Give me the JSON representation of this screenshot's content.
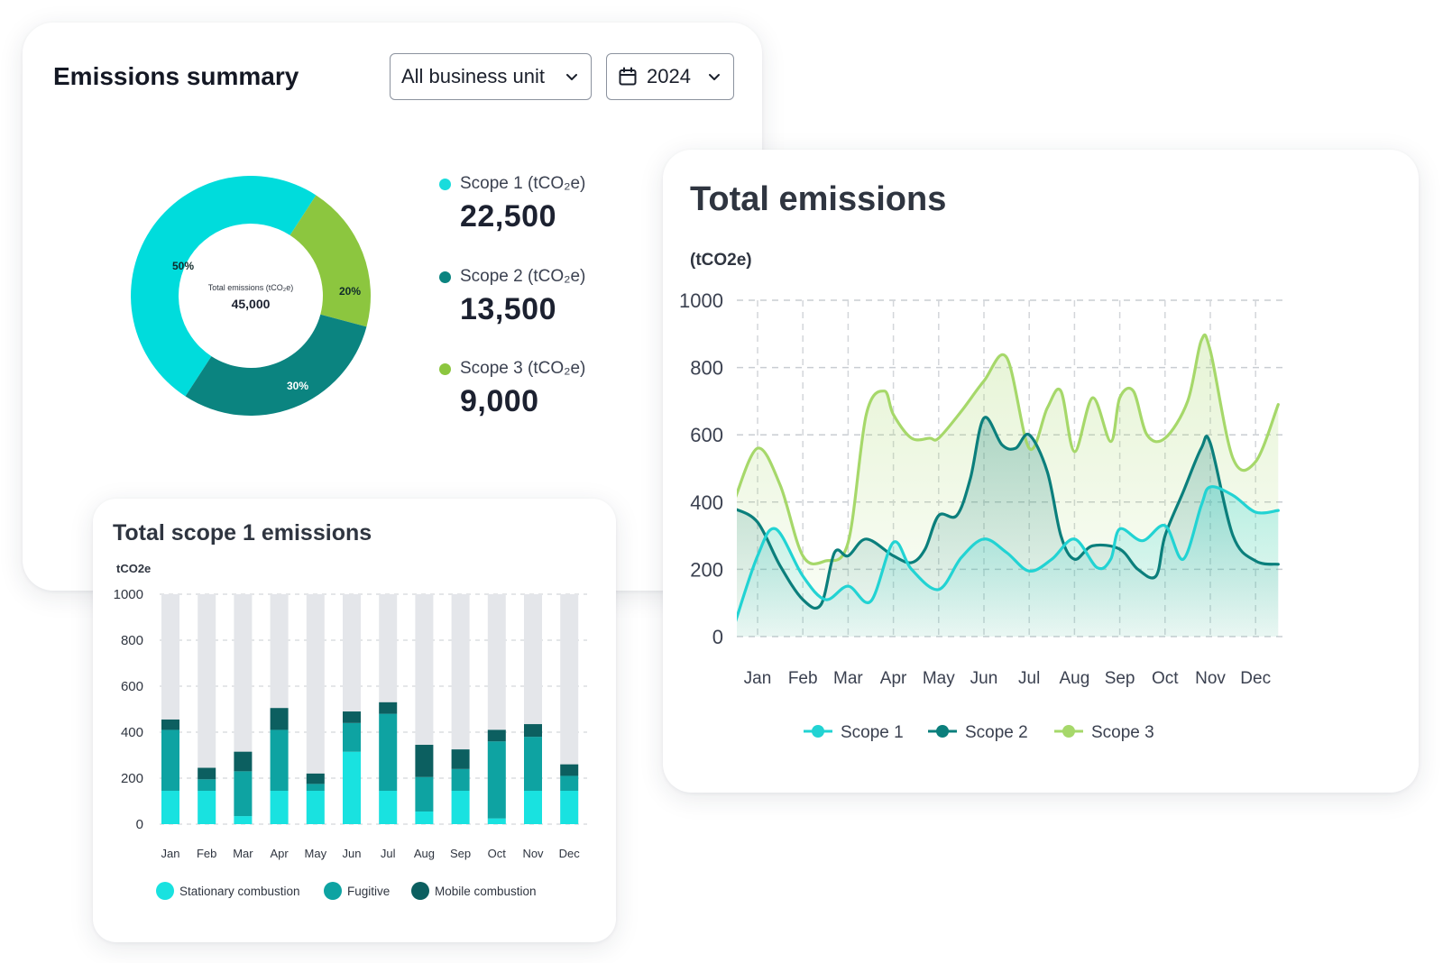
{
  "summary": {
    "title": "Emissions summary",
    "business_dropdown": "All business unit",
    "year_dropdown": "2024",
    "donut_center_label": "Total emissions (tCO₂e)",
    "donut_center_value": "45,000",
    "legend": [
      {
        "label": "Scope 1 (tCO₂e)",
        "value": "22,500",
        "color": "#19dcdc"
      },
      {
        "label": "Scope 2 (tCO₂e)",
        "value": "13,500",
        "color": "#0b8480"
      },
      {
        "label": "Scope 3 (tCO₂e)",
        "value": "9,000",
        "color": "#8cc63f"
      }
    ]
  },
  "total": {
    "title": "Total emissions",
    "unit": "(tCO2e)"
  },
  "scope1": {
    "title": "Total scope 1 emissions",
    "unit": "tCO2e"
  },
  "chart_data": [
    {
      "type": "pie",
      "variant": "donut",
      "categories": [
        "Scope 1",
        "Scope 2",
        "Scope 3"
      ],
      "values": [
        50,
        30,
        20
      ],
      "slice_labels": [
        "50%",
        "30%",
        "20%"
      ],
      "colors": [
        "#00dcdc",
        "#0b8480",
        "#8cc63f"
      ]
    },
    {
      "type": "line",
      "title": "Total emissions",
      "ylabel": "(tCO2e)",
      "categories": [
        "Jan",
        "Feb",
        "Mar",
        "Apr",
        "May",
        "Jun",
        "Jul",
        "Aug",
        "Sep",
        "Oct",
        "Nov",
        "Dec"
      ],
      "ylim": [
        0,
        1000
      ],
      "yticks": [
        0,
        200,
        400,
        600,
        800,
        1000
      ],
      "grid": true,
      "legend": "bottom",
      "area_fill": true,
      "series": [
        {
          "name": "Scope 1",
          "color": "#22d3d3",
          "x": [
            -0.5,
            0,
            0.4,
            1,
            1.5,
            2,
            2.5,
            3,
            3.4,
            4,
            4.5,
            5,
            5.5,
            6,
            6.5,
            7,
            7.5,
            7.8,
            8,
            8.5,
            9,
            9.4,
            9.8,
            10,
            10.5,
            11,
            11.5
          ],
          "y": [
            40,
            240,
            320,
            180,
            110,
            150,
            105,
            280,
            200,
            140,
            235,
            290,
            250,
            195,
            230,
            290,
            205,
            230,
            320,
            285,
            330,
            230,
            390,
            445,
            420,
            370,
            375
          ]
        },
        {
          "name": "Scope 2",
          "color": "#0b7f7c",
          "x": [
            -0.5,
            0,
            0.5,
            1,
            1.4,
            1.7,
            2,
            2.4,
            3,
            3.4,
            3.7,
            4,
            4.4,
            4.7,
            5,
            5.4,
            5.7,
            6,
            6.4,
            6.7,
            7,
            7.4,
            8,
            8.4,
            8.8,
            9,
            9.4,
            9.8,
            10,
            10.5,
            11,
            11.5
          ],
          "y": [
            380,
            340,
            210,
            110,
            95,
            250,
            240,
            290,
            240,
            220,
            260,
            360,
            360,
            470,
            650,
            570,
            560,
            600,
            490,
            300,
            230,
            270,
            260,
            200,
            180,
            300,
            430,
            560,
            575,
            300,
            225,
            215
          ]
        },
        {
          "name": "Scope 3",
          "color": "#a6d86a",
          "x": [
            -0.5,
            0,
            0.5,
            1,
            1.5,
            2,
            2.4,
            2.8,
            3,
            3.4,
            3.8,
            4,
            4.5,
            5,
            5.5,
            6,
            6.4,
            6.7,
            7,
            7.4,
            7.8,
            8,
            8.3,
            8.6,
            9,
            9.5,
            9.8,
            10,
            10.5,
            11,
            11.5
          ],
          "y": [
            410,
            560,
            450,
            240,
            225,
            280,
            660,
            730,
            660,
            590,
            590,
            590,
            670,
            760,
            830,
            560,
            680,
            730,
            550,
            710,
            580,
            710,
            730,
            600,
            590,
            700,
            880,
            850,
            530,
            520,
            690
          ]
        }
      ]
    },
    {
      "type": "bar",
      "stacked": true,
      "title": "Total scope 1 emissions",
      "ylabel": "tCO2e",
      "categories": [
        "Jan",
        "Feb",
        "Mar",
        "Apr",
        "May",
        "Jun",
        "Jul",
        "Aug",
        "Sep",
        "Oct",
        "Nov",
        "Dec"
      ],
      "ylim": [
        0,
        1000
      ],
      "yticks": [
        0,
        200,
        400,
        600,
        800,
        1000
      ],
      "grid": true,
      "legend": "bottom",
      "background_value": 1000,
      "series": [
        {
          "name": "Stationary combustion",
          "color": "#19e2e0",
          "values": [
            145,
            145,
            35,
            145,
            145,
            315,
            145,
            55,
            145,
            25,
            145,
            145
          ]
        },
        {
          "name": "Fugitive",
          "color": "#0ea3a2",
          "values": [
            265,
            50,
            195,
            265,
            30,
            125,
            335,
            150,
            95,
            335,
            235,
            65
          ]
        },
        {
          "name": "Mobile combustion",
          "color": "#0c5f60",
          "values": [
            45,
            50,
            85,
            95,
            45,
            50,
            50,
            140,
            85,
            50,
            55,
            50
          ]
        }
      ]
    }
  ]
}
